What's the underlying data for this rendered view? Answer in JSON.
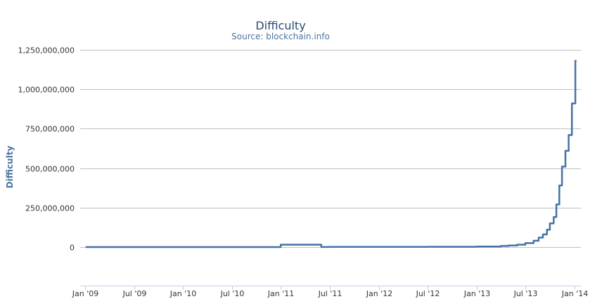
{
  "chart_data": {
    "type": "line",
    "title": "Difficulty",
    "subtitle": "Source: blockchain.info",
    "xlabel": "",
    "ylabel": "Difficulty",
    "x_tick_labels": [
      "Jan '09",
      "Jul '09",
      "Jan '10",
      "Jul '10",
      "Jan '11",
      "Jul '11",
      "Jan '12",
      "Jul '12",
      "Jan '13",
      "Jul '13",
      "Jan '14"
    ],
    "y_tick_labels": [
      "0",
      "250,000,000",
      "500,000,000",
      "750,000,000",
      "1,000,000,000",
      "1,250,000,000"
    ],
    "ylim": [
      0,
      1250000000
    ],
    "xlim": [
      "2009-01-03",
      "2014-01-08"
    ],
    "grid": "horizontal",
    "legend": "none",
    "series": [
      {
        "color": "#4572a7",
        "points": [
          [
            "2009-01-03",
            1
          ],
          [
            "2010-06-01",
            15000
          ],
          [
            "2011-01-01",
            15000000
          ],
          [
            "2011-06-01",
            500000
          ],
          [
            "2011-07-01",
            1500000
          ],
          [
            "2012-01-01",
            1200000
          ],
          [
            "2012-07-01",
            1800000
          ],
          [
            "2013-01-01",
            3200000
          ],
          [
            "2013-04-01",
            7000000
          ],
          [
            "2013-05-01",
            10000000
          ],
          [
            "2013-06-01",
            15000000
          ],
          [
            "2013-07-01",
            25000000
          ],
          [
            "2013-08-01",
            40000000
          ],
          [
            "2013-08-20",
            60000000
          ],
          [
            "2013-09-05",
            80000000
          ],
          [
            "2013-09-20",
            110000000
          ],
          [
            "2013-10-01",
            150000000
          ],
          [
            "2013-10-15",
            190000000
          ],
          [
            "2013-10-25",
            270000000
          ],
          [
            "2013-11-05",
            390000000
          ],
          [
            "2013-11-15",
            510000000
          ],
          [
            "2013-11-28",
            610000000
          ],
          [
            "2013-12-10",
            710000000
          ],
          [
            "2013-12-22",
            910000000
          ],
          [
            "2014-01-04",
            1180000000
          ]
        ]
      }
    ]
  }
}
